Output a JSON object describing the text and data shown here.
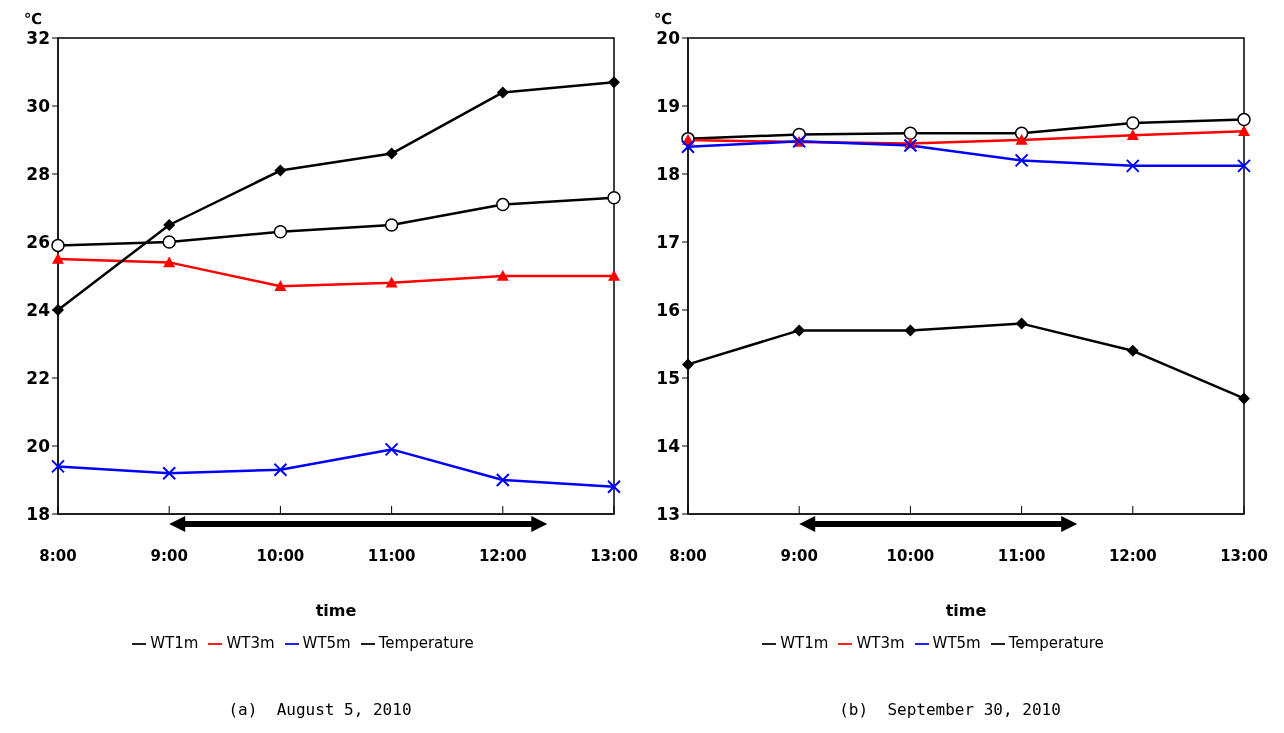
{
  "chart_data": [
    {
      "type": "line",
      "xlabel": "time",
      "ylabel": "℃",
      "categories": [
        "8:00",
        "9:00",
        "10:00",
        "11:00",
        "12:00",
        "13:00"
      ],
      "ylim": [
        18,
        32
      ],
      "yticks": [
        18,
        20,
        22,
        24,
        26,
        28,
        30,
        32
      ],
      "grid": false,
      "legend": "bottom",
      "annotations": [
        "(a)  August 5, 2010"
      ],
      "series": [
        {
          "name": "WT1m",
          "color": "#000000",
          "marker": "circle",
          "values": [
            25.9,
            26.0,
            26.3,
            26.5,
            27.1,
            27.3
          ]
        },
        {
          "name": "WT3m",
          "color": "#ff0000",
          "marker": "triangle",
          "values": [
            25.5,
            25.4,
            24.7,
            24.8,
            25.0,
            25.0
          ]
        },
        {
          "name": "WT5m",
          "color": "#0000ff",
          "marker": "cross",
          "values": [
            19.4,
            19.2,
            19.3,
            19.9,
            19.0,
            18.8
          ]
        },
        {
          "name": "Temperature",
          "color": "#000000",
          "marker": "diamond",
          "values": [
            24.0,
            26.5,
            28.1,
            28.6,
            30.4,
            30.7
          ]
        }
      ]
    },
    {
      "type": "line",
      "xlabel": "time",
      "ylabel": "℃",
      "categories": [
        "8:00",
        "9:00",
        "10:00",
        "11:00",
        "12:00",
        "13:00"
      ],
      "ylim": [
        13,
        20
      ],
      "yticks": [
        13,
        14,
        15,
        16,
        17,
        18,
        19,
        20
      ],
      "grid": false,
      "legend": "bottom",
      "annotations": [
        "(b)  September 30, 2010"
      ],
      "series": [
        {
          "name": "WT1m",
          "color": "#000000",
          "marker": "circle",
          "values": [
            18.52,
            18.58,
            18.6,
            18.6,
            18.75,
            18.8
          ]
        },
        {
          "name": "WT3m",
          "color": "#ff0000",
          "marker": "triangle",
          "values": [
            18.5,
            18.47,
            18.45,
            18.5,
            18.57,
            18.63
          ]
        },
        {
          "name": "WT5m",
          "color": "#0000ff",
          "marker": "cross",
          "values": [
            18.4,
            18.48,
            18.42,
            18.2,
            18.12,
            18.12
          ]
        },
        {
          "name": "Temperature",
          "color": "#000000",
          "marker": "diamond",
          "values": [
            15.2,
            15.7,
            15.7,
            15.8,
            15.4,
            14.7
          ]
        }
      ]
    }
  ]
}
